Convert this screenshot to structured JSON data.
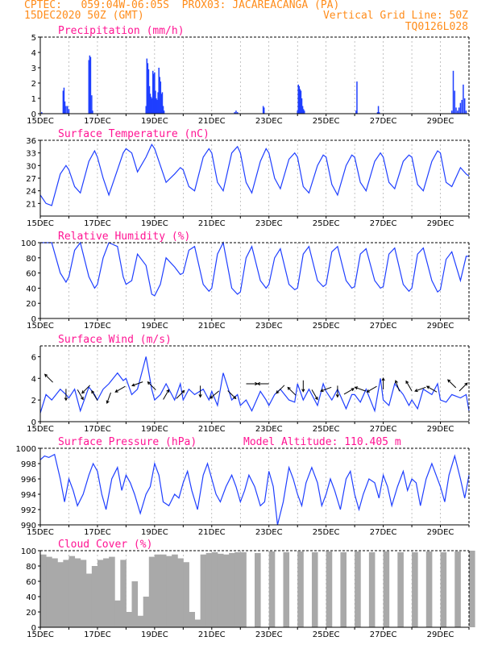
{
  "header": {
    "line1": "CPTEC:   059:04W-06:05S  PROX03: JACAREACANGA (PA)",
    "line2_left": "15DEC2020 50Z (GMT)",
    "line2_right": "Vertical Grid Line: 50Z",
    "line3_right": "TQ0126L028"
  },
  "colors": {
    "header": "#ff8c1a",
    "panel_title": "#ff1493",
    "series": "#1f3fff",
    "cloud": "#a9a9a9",
    "axis": "#000000"
  },
  "chart_data": [
    {
      "id": "precip",
      "type": "bar",
      "title": "Precipitation (mm/h)",
      "ylim": [
        0,
        5
      ],
      "yticks": [
        "0",
        "1",
        "2",
        "3",
        "4",
        "5"
      ],
      "xticks": [
        "15DEC",
        "17DEC",
        "19DEC",
        "21DEC",
        "23DEC",
        "25DEC",
        "27DEC",
        "29DEC"
      ],
      "xrange_days": [
        15,
        30
      ],
      "x_day": [
        15.05,
        15.8,
        15.83,
        15.86,
        15.9,
        15.95,
        16.0,
        16.7,
        16.73,
        16.76,
        16.8,
        16.83,
        18.7,
        18.73,
        18.76,
        18.79,
        18.82,
        18.85,
        18.88,
        18.91,
        18.94,
        18.97,
        19.0,
        19.03,
        19.06,
        19.09,
        19.12,
        19.15,
        19.18,
        19.21,
        19.24,
        19.27,
        19.3,
        19.33,
        21.8,
        21.85,
        21.9,
        22.8,
        22.83,
        24.0,
        24.03,
        24.06,
        24.09,
        24.12,
        24.15,
        24.18,
        24.21,
        24.24,
        26.05,
        26.08,
        26.8,
        26.83,
        26.86,
        29.4,
        29.45,
        29.5,
        29.55,
        29.6,
        29.65,
        29.7,
        29.75,
        29.8,
        29.85,
        29.9
      ],
      "values": [
        0.1,
        1.5,
        1.7,
        0.8,
        0.5,
        0.5,
        0.3,
        3.5,
        3.8,
        3.7,
        1.2,
        0.2,
        0.5,
        3.6,
        3.3,
        2.9,
        1.8,
        1.3,
        1.1,
        1.0,
        2.8,
        2.6,
        2.7,
        1.5,
        1.0,
        0.9,
        1.4,
        3.0,
        2.4,
        2.1,
        1.3,
        1.4,
        0.5,
        0.2,
        0.1,
        0.2,
        0.1,
        0.5,
        0.4,
        0.2,
        1.9,
        1.8,
        1.6,
        1.5,
        1.0,
        0.5,
        0.3,
        0.2,
        0.2,
        2.1,
        0.1,
        0.5,
        0.1,
        0.2,
        2.8,
        1.5,
        0.4,
        0.2,
        0.4,
        0.7,
        0.9,
        1.9,
        1.0,
        0.2
      ]
    },
    {
      "id": "temp",
      "type": "line",
      "title": "Surface Temperature (nC)",
      "ylim": [
        18,
        36
      ],
      "yticks": [
        "21",
        "24",
        "27",
        "30",
        "33",
        "36"
      ],
      "xticks": [
        "15DEC",
        "17DEC",
        "19DEC",
        "21DEC",
        "23DEC",
        "25DEC",
        "27DEC",
        "29DEC"
      ],
      "xrange_days": [
        15,
        30
      ],
      "x_day": [
        15.0,
        15.2,
        15.4,
        15.7,
        15.9,
        16.0,
        16.2,
        16.4,
        16.7,
        16.9,
        17.0,
        17.2,
        17.4,
        17.7,
        17.9,
        18.0,
        18.2,
        18.4,
        18.7,
        18.9,
        19.0,
        19.2,
        19.4,
        19.7,
        19.9,
        20.0,
        20.2,
        20.4,
        20.7,
        20.9,
        21.0,
        21.2,
        21.4,
        21.7,
        21.9,
        22.0,
        22.2,
        22.4,
        22.7,
        22.9,
        23.0,
        23.2,
        23.4,
        23.7,
        23.9,
        24.0,
        24.2,
        24.4,
        24.7,
        24.9,
        25.0,
        25.2,
        25.4,
        25.7,
        25.9,
        26.0,
        26.2,
        26.4,
        26.7,
        26.9,
        27.0,
        27.2,
        27.4,
        27.7,
        27.9,
        28.0,
        28.2,
        28.4,
        28.7,
        28.9,
        29.0,
        29.2,
        29.4,
        29.7,
        29.9,
        30.0
      ],
      "values": [
        23.0,
        21.0,
        20.5,
        28.0,
        30.0,
        29.0,
        25.0,
        23.5,
        31.0,
        33.5,
        32.0,
        27.0,
        23.0,
        29.0,
        33.0,
        34.0,
        33.0,
        28.5,
        32.0,
        35.0,
        34.0,
        30.0,
        26.0,
        28.0,
        29.5,
        29.0,
        25.0,
        24.0,
        32.0,
        34.0,
        33.0,
        26.0,
        24.0,
        33.0,
        34.5,
        33.0,
        26.0,
        23.5,
        31.0,
        34.0,
        33.0,
        27.0,
        24.5,
        31.5,
        33.0,
        32.0,
        25.0,
        23.5,
        30.0,
        32.5,
        32.0,
        25.5,
        23.0,
        30.0,
        32.5,
        32.0,
        26.0,
        24.0,
        31.0,
        33.0,
        32.0,
        26.0,
        24.5,
        31.0,
        32.5,
        32.0,
        25.5,
        24.0,
        31.0,
        33.5,
        33.0,
        26.0,
        25.0,
        29.5,
        28.0,
        27.5
      ]
    },
    {
      "id": "rh",
      "type": "line",
      "title": "Relative Humidity (%)",
      "ylim": [
        0,
        100
      ],
      "yticks": [
        "0",
        "20",
        "40",
        "60",
        "80",
        "100"
      ],
      "xticks": [
        "15DEC",
        "17DEC",
        "19DEC",
        "21DEC",
        "23DEC",
        "25DEC",
        "27DEC",
        "29DEC"
      ],
      "xrange_days": [
        15,
        30
      ],
      "x_day": [
        15.0,
        15.2,
        15.4,
        15.7,
        15.9,
        16.0,
        16.2,
        16.4,
        16.7,
        16.9,
        17.0,
        17.2,
        17.4,
        17.7,
        17.9,
        18.0,
        18.2,
        18.4,
        18.7,
        18.9,
        19.0,
        19.2,
        19.4,
        19.7,
        19.9,
        20.0,
        20.2,
        20.4,
        20.7,
        20.9,
        21.0,
        21.2,
        21.4,
        21.7,
        21.9,
        22.0,
        22.2,
        22.4,
        22.7,
        22.9,
        23.0,
        23.2,
        23.4,
        23.7,
        23.9,
        24.0,
        24.2,
        24.4,
        24.7,
        24.9,
        25.0,
        25.2,
        25.4,
        25.7,
        25.9,
        26.0,
        26.2,
        26.4,
        26.7,
        26.9,
        27.0,
        27.2,
        27.4,
        27.7,
        27.9,
        28.0,
        28.2,
        28.4,
        28.7,
        28.9,
        29.0,
        29.2,
        29.4,
        29.7,
        29.9,
        30.0
      ],
      "values": [
        100,
        100,
        100,
        60,
        48,
        55,
        90,
        100,
        55,
        40,
        45,
        80,
        100,
        95,
        55,
        45,
        50,
        85,
        70,
        32,
        30,
        45,
        80,
        68,
        58,
        60,
        90,
        95,
        45,
        36,
        40,
        85,
        100,
        40,
        32,
        35,
        80,
        95,
        50,
        40,
        45,
        80,
        92,
        45,
        38,
        40,
        85,
        95,
        50,
        42,
        45,
        88,
        95,
        50,
        40,
        42,
        85,
        92,
        50,
        40,
        42,
        85,
        93,
        45,
        36,
        40,
        85,
        93,
        50,
        35,
        38,
        78,
        88,
        50,
        82,
        82
      ]
    },
    {
      "id": "wind",
      "type": "line",
      "title": "Surface Wind (m/s)",
      "ylim": [
        0,
        7
      ],
      "yticks": [
        "0",
        "2",
        "4",
        "6"
      ],
      "xticks": [
        "15DEC",
        "17DEC",
        "19DEC",
        "21DEC",
        "23DEC",
        "25DEC",
        "27DEC",
        "29DEC"
      ],
      "xrange_days": [
        15,
        30
      ],
      "x_day": [
        15.0,
        15.2,
        15.4,
        15.7,
        15.9,
        16.0,
        16.2,
        16.4,
        16.7,
        16.9,
        17.0,
        17.2,
        17.4,
        17.7,
        17.9,
        18.0,
        18.2,
        18.4,
        18.7,
        18.9,
        19.0,
        19.2,
        19.4,
        19.7,
        19.9,
        20.0,
        20.2,
        20.4,
        20.7,
        20.9,
        21.0,
        21.2,
        21.4,
        21.7,
        21.9,
        22.0,
        22.2,
        22.4,
        22.7,
        22.9,
        23.0,
        23.2,
        23.4,
        23.7,
        23.9,
        24.0,
        24.2,
        24.4,
        24.7,
        24.9,
        25.0,
        25.2,
        25.4,
        25.7,
        25.9,
        26.0,
        26.2,
        26.4,
        26.7,
        26.9,
        27.0,
        27.2,
        27.4,
        27.7,
        27.9,
        28.0,
        28.2,
        28.4,
        28.7,
        28.9,
        29.0,
        29.2,
        29.4,
        29.7,
        29.9,
        30.0
      ],
      "values": [
        0.8,
        2.5,
        2.0,
        3.0,
        2.5,
        2.2,
        3.0,
        1.0,
        3.2,
        2.5,
        2.0,
        3.0,
        3.5,
        4.5,
        3.8,
        4.0,
        2.5,
        3.0,
        6.0,
        3.0,
        2.0,
        2.5,
        3.5,
        2.0,
        3.5,
        2.0,
        3.0,
        2.5,
        3.0,
        2.0,
        2.8,
        1.5,
        4.5,
        2.0,
        2.5,
        1.5,
        2.0,
        1.0,
        2.8,
        2.0,
        1.5,
        2.5,
        3.0,
        2.0,
        1.8,
        3.5,
        2.0,
        3.0,
        1.5,
        3.5,
        2.8,
        2.0,
        3.0,
        1.2,
        2.5,
        2.5,
        1.8,
        3.0,
        1.0,
        4.0,
        2.0,
        1.5,
        3.5,
        2.5,
        1.5,
        2.0,
        1.2,
        3.0,
        2.5,
        3.5,
        2.0,
        1.8,
        2.5,
        2.2,
        2.5,
        1.0
      ],
      "arrows": [
        {
          "x": 15.3,
          "y": 4.0,
          "dir": 135
        },
        {
          "x": 15.9,
          "y": 2.5,
          "dir": 270
        },
        {
          "x": 16.4,
          "y": 2.5,
          "dir": 300
        },
        {
          "x": 16.6,
          "y": 3.0,
          "dir": 225
        },
        {
          "x": 16.9,
          "y": 2.4,
          "dir": 120
        },
        {
          "x": 17.4,
          "y": 2.2,
          "dir": 250
        },
        {
          "x": 17.8,
          "y": 3.0,
          "dir": 210
        },
        {
          "x": 18.4,
          "y": 3.5,
          "dir": 200
        },
        {
          "x": 18.9,
          "y": 3.3,
          "dir": 135
        },
        {
          "x": 19.4,
          "y": 2.5,
          "dir": 60
        },
        {
          "x": 19.9,
          "y": 2.5,
          "dir": 45
        },
        {
          "x": 20.6,
          "y": 2.8,
          "dir": 270
        },
        {
          "x": 21.1,
          "y": 2.5,
          "dir": 220
        },
        {
          "x": 21.7,
          "y": 2.5,
          "dir": 315
        },
        {
          "x": 22.4,
          "y": 3.5,
          "dir": 0
        },
        {
          "x": 22.8,
          "y": 3.5,
          "dir": 180
        },
        {
          "x": 23.4,
          "y": 3.0,
          "dir": 225
        },
        {
          "x": 23.8,
          "y": 2.8,
          "dir": 135
        },
        {
          "x": 24.2,
          "y": 3.3,
          "dir": 270
        },
        {
          "x": 24.6,
          "y": 2.5,
          "dir": 300
        },
        {
          "x": 25.0,
          "y": 3.0,
          "dir": 200
        },
        {
          "x": 25.4,
          "y": 2.8,
          "dir": 270
        },
        {
          "x": 25.8,
          "y": 2.8,
          "dir": 30
        },
        {
          "x": 26.2,
          "y": 3.0,
          "dir": 160
        },
        {
          "x": 26.6,
          "y": 3.0,
          "dir": 210
        },
        {
          "x": 27.0,
          "y": 3.5,
          "dir": 90
        },
        {
          "x": 27.5,
          "y": 3.3,
          "dir": 110
        },
        {
          "x": 27.9,
          "y": 3.3,
          "dir": 120
        },
        {
          "x": 28.3,
          "y": 3.0,
          "dir": 200
        },
        {
          "x": 28.7,
          "y": 3.0,
          "dir": 150
        },
        {
          "x": 29.4,
          "y": 3.5,
          "dir": 135
        },
        {
          "x": 29.8,
          "y": 3.2,
          "dir": 45
        }
      ]
    },
    {
      "id": "pressure",
      "type": "line",
      "title": "Surface Pressure (hPa)",
      "annotation": "Model Altitude: 110.405  m",
      "ylim": [
        990,
        1000
      ],
      "yticks": [
        "990",
        "992",
        "994",
        "996",
        "998",
        "1000"
      ],
      "xticks": [
        "15DEC",
        "17DEC",
        "19DEC",
        "21DEC",
        "23DEC",
        "25DEC",
        "27DEC",
        "29DEC"
      ],
      "xrange_days": [
        15,
        30
      ],
      "x_day": [
        15.0,
        15.15,
        15.3,
        15.5,
        15.7,
        15.85,
        16.0,
        16.15,
        16.3,
        16.5,
        16.7,
        16.85,
        17.0,
        17.15,
        17.3,
        17.5,
        17.7,
        17.85,
        18.0,
        18.15,
        18.3,
        18.5,
        18.7,
        18.85,
        19.0,
        19.15,
        19.3,
        19.5,
        19.7,
        19.85,
        20.0,
        20.15,
        20.3,
        20.5,
        20.7,
        20.85,
        21.0,
        21.15,
        21.3,
        21.5,
        21.7,
        21.85,
        22.0,
        22.15,
        22.3,
        22.5,
        22.7,
        22.85,
        23.0,
        23.15,
        23.3,
        23.5,
        23.7,
        23.85,
        24.0,
        24.15,
        24.3,
        24.5,
        24.7,
        24.85,
        25.0,
        25.15,
        25.3,
        25.5,
        25.7,
        25.85,
        26.0,
        26.15,
        26.3,
        26.5,
        26.7,
        26.85,
        27.0,
        27.15,
        27.3,
        27.5,
        27.7,
        27.85,
        28.0,
        28.15,
        28.3,
        28.5,
        28.7,
        28.85,
        29.0,
        29.15,
        29.3,
        29.5,
        29.7,
        29.85,
        30.0
      ],
      "values": [
        998.5,
        999.0,
        998.8,
        999.2,
        996.0,
        993.0,
        996.0,
        994.5,
        992.5,
        994.0,
        996.5,
        998.0,
        997.0,
        994.0,
        992.0,
        996.0,
        997.5,
        994.5,
        996.5,
        995.5,
        994.0,
        991.5,
        994.0,
        995.0,
        998.0,
        996.5,
        993.0,
        992.5,
        994.0,
        993.5,
        995.5,
        997.0,
        994.5,
        992.0,
        996.5,
        998.0,
        996.0,
        994.0,
        993.0,
        995.0,
        996.5,
        995.0,
        993.0,
        994.5,
        996.5,
        995.0,
        992.5,
        993.0,
        997.0,
        995.0,
        990.0,
        993.0,
        997.5,
        996.0,
        994.0,
        992.5,
        995.5,
        997.5,
        995.5,
        992.5,
        994.0,
        996.0,
        994.5,
        992.0,
        996.0,
        997.0,
        994.0,
        992.0,
        994.0,
        996.0,
        995.5,
        993.5,
        996.5,
        995.0,
        992.5,
        995.0,
        997.0,
        994.5,
        996.0,
        995.5,
        992.5,
        996.0,
        998.0,
        996.5,
        995.0,
        993.0,
        996.5,
        999.0,
        996.0,
        993.5,
        996.5
      ]
    },
    {
      "id": "cloud",
      "type": "area",
      "title": "Cloud Cover (%)",
      "ylim": [
        0,
        100
      ],
      "yticks": [
        "0",
        "20",
        "40",
        "60",
        "80",
        "100"
      ],
      "xticks": [
        "15DEC",
        "17DEC",
        "19DEC",
        "21DEC",
        "23DEC",
        "25DEC",
        "27DEC",
        "29DEC"
      ],
      "xrange_days": [
        15,
        30
      ],
      "x_day": [
        15.0,
        15.2,
        15.4,
        15.6,
        15.8,
        16.0,
        16.2,
        16.4,
        16.6,
        16.8,
        17.0,
        17.2,
        17.4,
        17.6,
        17.8,
        18.0,
        18.2,
        18.4,
        18.6,
        18.8,
        19.0,
        19.2,
        19.4,
        19.6,
        19.8,
        20.0,
        20.2,
        20.4,
        20.6,
        20.8,
        21.0,
        21.2,
        21.4,
        21.6,
        21.8,
        22.0,
        22.5,
        23.0,
        23.5,
        24.0,
        24.5,
        25.0,
        25.5,
        26.0,
        26.5,
        27.0,
        27.5,
        28.0,
        28.5,
        29.0,
        29.5,
        30.0
      ],
      "values": [
        95,
        92,
        90,
        85,
        88,
        93,
        90,
        88,
        70,
        80,
        88,
        90,
        92,
        35,
        88,
        20,
        60,
        15,
        40,
        92,
        95,
        95,
        93,
        95,
        90,
        85,
        20,
        10,
        95,
        97,
        98,
        96,
        95,
        97,
        98,
        98,
        97,
        99,
        98,
        99,
        98,
        99,
        98,
        99,
        98,
        99,
        98,
        98,
        99,
        98,
        99,
        100
      ]
    }
  ]
}
